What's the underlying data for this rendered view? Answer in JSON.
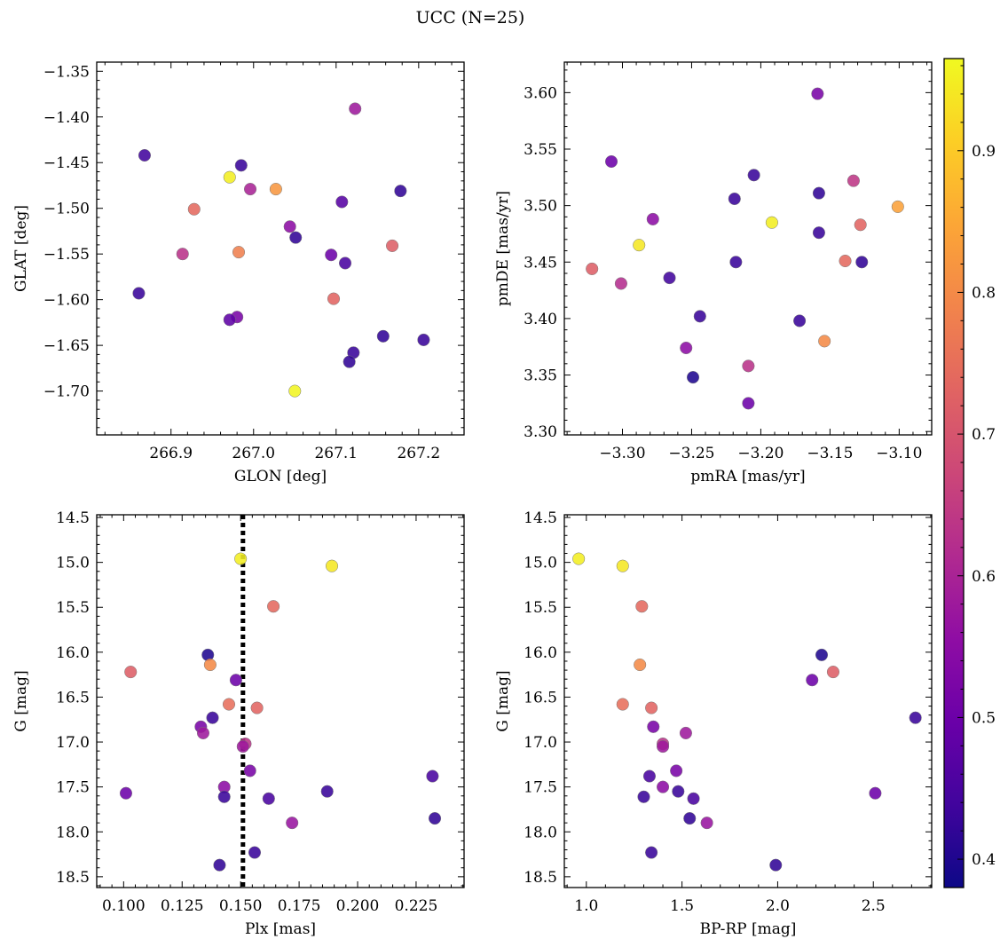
{
  "figure": {
    "title": "UCC (N=25)"
  },
  "colorbar": {
    "range": [
      0.38,
      0.965
    ],
    "ticks": [
      0.4,
      0.5,
      0.6,
      0.7,
      0.8,
      0.9
    ],
    "colormap": "plasma"
  },
  "chart_data": [
    {
      "type": "scatter",
      "title": "",
      "xlabel": "GLON [deg]",
      "ylabel": "GLAT [deg]",
      "xlim": [
        266.81,
        267.255
      ],
      "ylim": [
        -1.748,
        -1.34
      ],
      "xticks": [
        266.9,
        267.0,
        267.1,
        267.2
      ],
      "xtick_labels": [
        "266.9",
        "267.0",
        "267.1",
        "267.2"
      ],
      "yticks": [
        -1.35,
        -1.4,
        -1.45,
        -1.5,
        -1.55,
        -1.6,
        -1.65,
        -1.7
      ],
      "ytick_labels": [
        "−1.35",
        "−1.40",
        "−1.45",
        "−1.50",
        "−1.55",
        "−1.60",
        "−1.65",
        "−1.70"
      ],
      "x": [
        267.123,
        266.868,
        266.985,
        266.971,
        266.996,
        267.027,
        267.178,
        267.107,
        266.928,
        267.044,
        267.051,
        266.914,
        266.982,
        267.094,
        267.168,
        267.111,
        266.861,
        267.097,
        266.98,
        266.971,
        267.206,
        267.157,
        267.121,
        267.116,
        267.05
      ],
      "y": [
        -1.391,
        -1.442,
        -1.453,
        -1.466,
        -1.479,
        -1.479,
        -1.481,
        -1.493,
        -1.501,
        -1.52,
        -1.532,
        -1.55,
        -1.548,
        -1.551,
        -1.541,
        -1.56,
        -1.593,
        -1.599,
        -1.619,
        -1.622,
        -1.644,
        -1.64,
        -1.658,
        -1.668,
        -1.7
      ],
      "color": [
        0.58,
        0.44,
        0.43,
        0.95,
        0.6,
        0.82,
        0.42,
        0.47,
        0.74,
        0.55,
        0.42,
        0.63,
        0.78,
        0.5,
        0.72,
        0.45,
        0.43,
        0.73,
        0.52,
        0.48,
        0.43,
        0.42,
        0.43,
        0.42,
        0.96
      ]
    },
    {
      "type": "scatter",
      "title": "",
      "xlabel": "pmRA [mas/yr]",
      "ylabel": "pmDE [mas/yr]",
      "xlim": [
        -3.342,
        -3.0765
      ],
      "ylim": [
        3.297,
        3.627
      ],
      "xticks": [
        -3.3,
        -3.25,
        -3.2,
        -3.15,
        -3.1
      ],
      "xtick_labels": [
        "−3.30",
        "−3.25",
        "−3.20",
        "−3.15",
        "−3.10"
      ],
      "yticks": [
        3.3,
        3.35,
        3.4,
        3.45,
        3.5,
        3.55,
        3.6
      ],
      "ytick_labels": [
        "3.30",
        "3.35",
        "3.40",
        "3.45",
        "3.50",
        "3.55",
        "3.60"
      ],
      "x": [
        -3.159,
        -3.308,
        -3.205,
        -3.133,
        -3.158,
        -3.219,
        -3.101,
        -3.192,
        -3.128,
        -3.278,
        -3.158,
        -3.288,
        -3.218,
        -3.127,
        -3.139,
        -3.322,
        -3.301,
        -3.266,
        -3.244,
        -3.172,
        -3.154,
        -3.254,
        -3.209,
        -3.249,
        -3.209
      ],
      "y": [
        3.599,
        3.539,
        3.527,
        3.522,
        3.511,
        3.506,
        3.499,
        3.485,
        3.483,
        3.488,
        3.476,
        3.465,
        3.45,
        3.45,
        3.451,
        3.444,
        3.431,
        3.436,
        3.402,
        3.398,
        3.38,
        3.374,
        3.358,
        3.348,
        3.325
      ],
      "color": [
        0.52,
        0.5,
        0.43,
        0.64,
        0.42,
        0.43,
        0.84,
        0.95,
        0.73,
        0.55,
        0.43,
        0.94,
        0.43,
        0.42,
        0.74,
        0.72,
        0.62,
        0.44,
        0.43,
        0.43,
        0.8,
        0.55,
        0.63,
        0.4,
        0.5
      ]
    },
    {
      "type": "scatter",
      "title": "",
      "xlabel": "Plx [mas]",
      "ylabel": "G [mag]",
      "xlim": [
        0.0885,
        0.2455
      ],
      "ylim": [
        18.62,
        14.47
      ],
      "y_inverted": true,
      "vline": 0.151,
      "xticks": [
        0.1,
        0.125,
        0.15,
        0.175,
        0.2,
        0.225
      ],
      "xtick_labels": [
        "0.100",
        "0.125",
        "0.150",
        "0.175",
        "0.200",
        "0.225"
      ],
      "yticks": [
        14.5,
        15.0,
        15.5,
        16.0,
        16.5,
        17.0,
        17.5,
        18.0,
        18.5
      ],
      "ytick_labels": [
        "14.5",
        "15.0",
        "15.5",
        "16.0",
        "16.5",
        "17.0",
        "17.5",
        "18.0",
        "18.5"
      ],
      "x": [
        0.15,
        0.189,
        0.164,
        0.136,
        0.137,
        0.103,
        0.148,
        0.145,
        0.157,
        0.138,
        0.133,
        0.134,
        0.152,
        0.151,
        0.154,
        0.101,
        0.143,
        0.187,
        0.232,
        0.143,
        0.162,
        0.172,
        0.233,
        0.156,
        0.141
      ],
      "y": [
        14.96,
        15.04,
        15.49,
        16.03,
        16.14,
        16.22,
        16.31,
        16.58,
        16.62,
        16.73,
        16.83,
        16.9,
        17.02,
        17.05,
        17.32,
        17.57,
        17.5,
        17.55,
        17.38,
        17.61,
        17.63,
        17.9,
        17.85,
        18.23,
        18.37
      ],
      "color": [
        0.95,
        0.94,
        0.74,
        0.4,
        0.8,
        0.72,
        0.5,
        0.75,
        0.73,
        0.43,
        0.52,
        0.58,
        0.63,
        0.58,
        0.52,
        0.5,
        0.55,
        0.43,
        0.45,
        0.43,
        0.45,
        0.57,
        0.42,
        0.43,
        0.42
      ]
    },
    {
      "type": "scatter",
      "title": "",
      "xlabel": "BP-RP [mag]",
      "ylabel": "G [mag]",
      "xlim": [
        0.885,
        2.805
      ],
      "ylim": [
        18.62,
        14.47
      ],
      "y_inverted": true,
      "xticks": [
        1.0,
        1.5,
        2.0,
        2.5
      ],
      "xtick_labels": [
        "1.0",
        "1.5",
        "2.0",
        "2.5"
      ],
      "yticks": [
        14.5,
        15.0,
        15.5,
        16.0,
        16.5,
        17.0,
        17.5,
        18.0,
        18.5
      ],
      "ytick_labels": [
        "14.5",
        "15.0",
        "15.5",
        "16.0",
        "16.5",
        "17.0",
        "17.5",
        "18.0",
        "18.5"
      ],
      "x": [
        0.96,
        1.19,
        1.29,
        2.23,
        1.28,
        2.29,
        2.18,
        1.19,
        1.34,
        2.72,
        1.35,
        1.52,
        1.4,
        1.4,
        1.47,
        1.33,
        1.4,
        1.48,
        2.51,
        1.3,
        1.56,
        1.63,
        1.54,
        1.34,
        1.99
      ],
      "y": [
        14.96,
        15.04,
        15.49,
        16.03,
        16.14,
        16.22,
        16.31,
        16.58,
        16.62,
        16.73,
        16.83,
        16.9,
        17.02,
        17.05,
        17.32,
        17.38,
        17.5,
        17.55,
        17.57,
        17.61,
        17.63,
        17.9,
        17.85,
        18.23,
        18.37
      ],
      "color": [
        0.95,
        0.94,
        0.74,
        0.4,
        0.8,
        0.72,
        0.5,
        0.75,
        0.73,
        0.43,
        0.52,
        0.58,
        0.63,
        0.58,
        0.52,
        0.45,
        0.55,
        0.43,
        0.5,
        0.43,
        0.45,
        0.57,
        0.42,
        0.43,
        0.42
      ]
    }
  ]
}
